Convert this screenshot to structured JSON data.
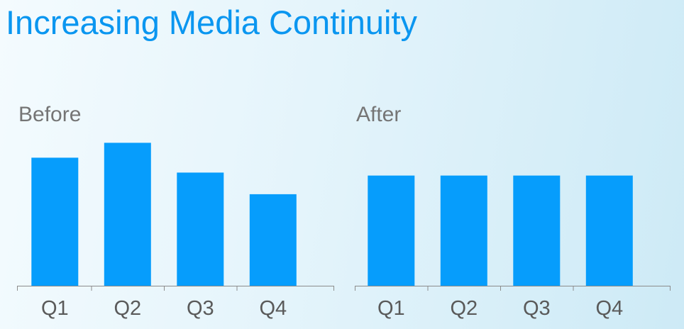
{
  "slide": {
    "title": "Increasing Media Continuity",
    "title_color": "#0a96f0"
  },
  "colors": {
    "bar": "#069dfc",
    "axis": "#8c8c8c",
    "tick_label": "#5a5a5a",
    "panel_title": "#757575"
  },
  "chart_data": [
    {
      "type": "bar",
      "title": "Before",
      "categories": [
        "Q1",
        "Q2",
        "Q3",
        "Q4"
      ],
      "values": [
        17.2,
        19.2,
        15.2,
        12.3
      ],
      "ylim": [
        0,
        20
      ]
    },
    {
      "type": "bar",
      "title": "After",
      "categories": [
        "Q1",
        "Q2",
        "Q3",
        "Q4"
      ],
      "values": [
        14.8,
        14.8,
        14.8,
        14.8
      ],
      "ylim": [
        0,
        20
      ]
    }
  ]
}
